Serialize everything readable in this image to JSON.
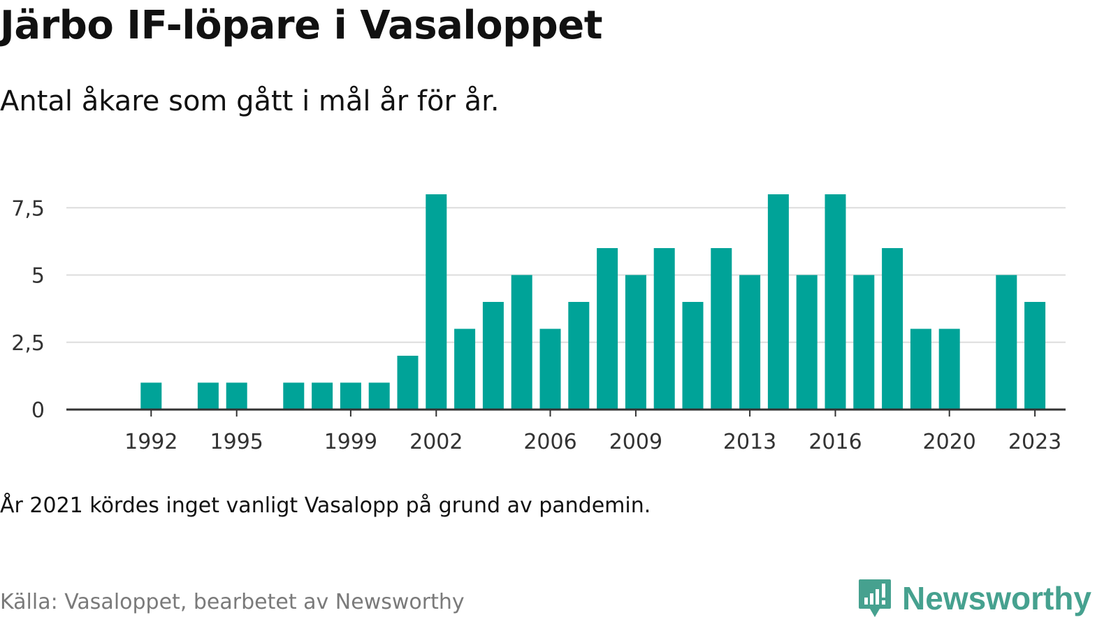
{
  "title": "Järbo IF-löpare i Vasaloppet",
  "subtitle": "Antal åkare som gått i mål år för år.",
  "note": "År 2021 kördes inget vanligt Vasalopp på grund av pandemin.",
  "source": "Källa: Vasaloppet, bearbetet av Newsworthy",
  "brand": {
    "name": "Newsworthy",
    "color": "#46a18f",
    "icon": "newsworthy-logo-icon"
  },
  "colors": {
    "bar": "#00a398",
    "grid": "#dddddd",
    "axis": "#333333",
    "tick_text": "#333333"
  },
  "chart_data": {
    "type": "bar",
    "categories": [
      "1991",
      "1992",
      "1993",
      "1994",
      "1995",
      "1996",
      "1997",
      "1998",
      "1999",
      "2000",
      "2001",
      "2002",
      "2003",
      "2004",
      "2005",
      "2006",
      "2007",
      "2008",
      "2009",
      "2010",
      "2011",
      "2012",
      "2013",
      "2014",
      "2015",
      "2016",
      "2017",
      "2018",
      "2019",
      "2020",
      "2021",
      "2022",
      "2023"
    ],
    "values": [
      0,
      1,
      0,
      1,
      1,
      0,
      1,
      1,
      1,
      1,
      2,
      8,
      3,
      4,
      5,
      3,
      4,
      6,
      5,
      6,
      4,
      6,
      5,
      8,
      5,
      8,
      5,
      6,
      3,
      3,
      0,
      5,
      4
    ],
    "x_tick_labels": [
      "1992",
      "1995",
      "1999",
      "2002",
      "2006",
      "2009",
      "2013",
      "2016",
      "2020",
      "2023"
    ],
    "y_ticks": [
      0,
      2.5,
      5,
      7.5
    ],
    "y_tick_labels": [
      "0",
      "2,5",
      "5",
      "7,5"
    ],
    "ylim": [
      0,
      8
    ],
    "grid": true,
    "xlabel": "",
    "ylabel": ""
  }
}
